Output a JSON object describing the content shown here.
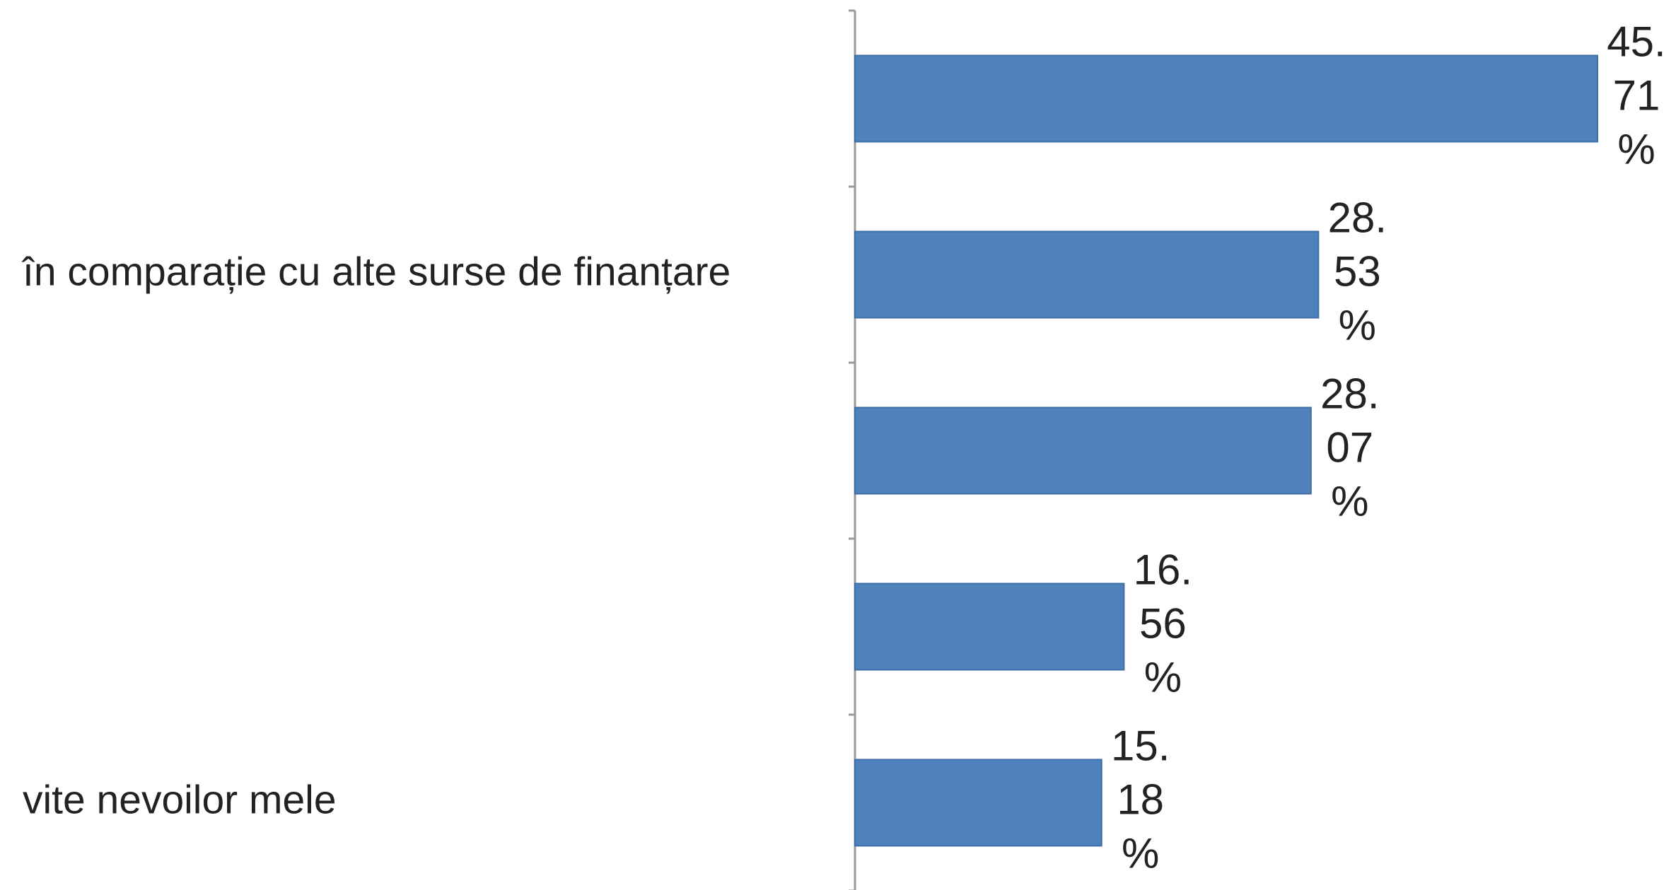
{
  "chart_data": {
    "type": "bar",
    "orientation": "horizontal",
    "categories": [
      null,
      "în comparație cu alte surse de finanțare",
      null,
      null,
      "vite nevoilor mele"
    ],
    "values": [
      45.71,
      28.53,
      28.07,
      16.56,
      15.18
    ],
    "value_labels": [
      "45.71%",
      "28.53%",
      "28.07%",
      "16.56%",
      "15.18%"
    ],
    "color": "#4f81bd",
    "grid": false
  }
}
